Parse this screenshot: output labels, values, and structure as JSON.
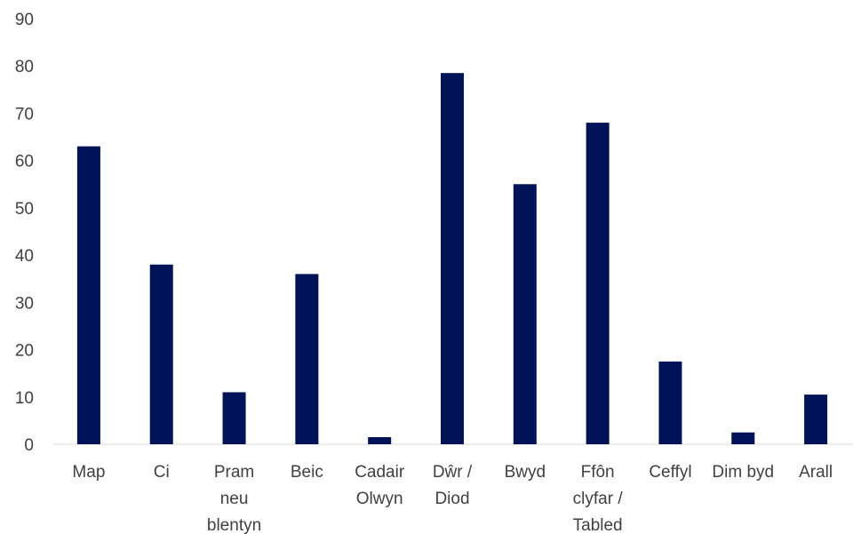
{
  "chart_data": {
    "type": "bar",
    "title": "",
    "xlabel": "",
    "ylabel": "",
    "ylim": [
      0,
      90
    ],
    "y_ticks": [
      0,
      10,
      20,
      30,
      40,
      50,
      60,
      70,
      80,
      90
    ],
    "grid": false,
    "bar_color": "#001359",
    "categories": [
      [
        "Map"
      ],
      [
        "Ci"
      ],
      [
        "Pram",
        "neu",
        "blentyn"
      ],
      [
        "Beic"
      ],
      [
        "Cadair",
        "Olwyn"
      ],
      [
        "Dŵr /",
        "Diod"
      ],
      [
        "Bwyd"
      ],
      [
        "Ffôn",
        "clyfar /",
        "Tabled"
      ],
      [
        "Ceffyl"
      ],
      [
        "Dim byd"
      ],
      [
        "Arall"
      ]
    ],
    "values": [
      63,
      38,
      11,
      36,
      1.5,
      78.5,
      55,
      68,
      17.5,
      2.5,
      10.5
    ]
  }
}
